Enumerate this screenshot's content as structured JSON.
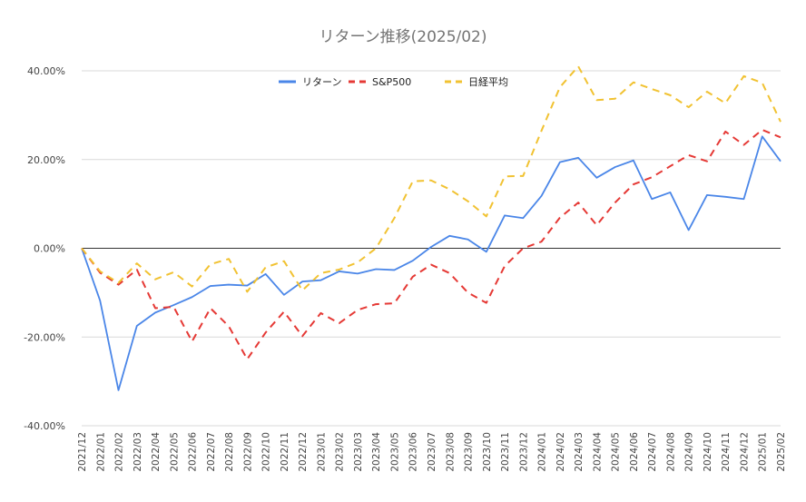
{
  "chart_data": {
    "type": "line",
    "title": "リターン推移(2025/02)",
    "xlabel": "",
    "ylabel": "",
    "y_unit": "%",
    "ylim": [
      -40,
      40
    ],
    "yticks": [
      "40.00%",
      "20.00%",
      "0.00%",
      "-20.00%",
      "-40.00%"
    ],
    "ytick_values": [
      40,
      20,
      0,
      -20,
      -40
    ],
    "grid": true,
    "legend_position": "top-center",
    "categories": [
      "2021/12",
      "2022/01",
      "2022/02",
      "2022/03",
      "2022/04",
      "2022/05",
      "2022/06",
      "2022/07",
      "2022/08",
      "2022/09",
      "2022/10",
      "2022/11",
      "2022/12",
      "2023/01",
      "2023/02",
      "2023/03",
      "2023/04",
      "2023/05",
      "2023/06",
      "2023/07",
      "2023/08",
      "2023/09",
      "2023/10",
      "2023/11",
      "2023/12",
      "2024/01",
      "2024/02",
      "2024/03",
      "2024/04",
      "2024/05",
      "2024/06",
      "2024/07",
      "2024/08",
      "2024/09",
      "2024/10",
      "2024/11",
      "2024/12",
      "2025/01",
      "2025/02"
    ],
    "series": [
      {
        "name": "リターン",
        "color": "#4a86e8",
        "style": "solid",
        "values": [
          0,
          -11.8,
          -32.0,
          -17.5,
          -14.5,
          -12.8,
          -11.0,
          -8.5,
          -8.2,
          -8.4,
          -5.8,
          -10.5,
          -7.5,
          -7.2,
          -5.2,
          -5.7,
          -4.7,
          -4.9,
          -2.8,
          0.3,
          2.8,
          2.0,
          -0.8,
          7.4,
          6.8,
          11.8,
          19.4,
          20.4,
          15.9,
          18.3,
          19.8,
          11.1,
          12.6,
          4.1,
          12.0,
          11.6,
          11.1,
          25.2,
          19.6
        ]
      },
      {
        "name": "S&P500",
        "color": "#e53935",
        "style": "dashed",
        "values": [
          0,
          -5.5,
          -8.2,
          -4.8,
          -13.5,
          -13.2,
          -21.0,
          -13.5,
          -17.6,
          -25.0,
          -19.0,
          -14.3,
          -19.8,
          -14.6,
          -16.9,
          -13.9,
          -12.6,
          -12.4,
          -6.4,
          -3.7,
          -5.6,
          -10.0,
          -12.3,
          -4.0,
          0.0,
          1.5,
          6.9,
          10.3,
          5.2,
          10.3,
          14.4,
          16.0,
          18.5,
          21.0,
          19.6,
          26.3,
          23.3,
          26.7,
          25.0
        ]
      },
      {
        "name": "日経平均",
        "color": "#f1c232",
        "style": "dashed",
        "values": [
          0,
          -5.2,
          -7.8,
          -3.4,
          -7.0,
          -5.4,
          -8.6,
          -3.6,
          -2.4,
          -9.8,
          -4.3,
          -2.9,
          -9.5,
          -5.6,
          -4.8,
          -3.2,
          0.0,
          6.8,
          15.1,
          15.3,
          13.3,
          10.6,
          7.2,
          16.2,
          16.3,
          26.5,
          36.3,
          41.0,
          33.4,
          33.7,
          37.4,
          35.9,
          34.5,
          31.8,
          35.3,
          32.7,
          38.8,
          37.3,
          28.5
        ]
      }
    ]
  }
}
